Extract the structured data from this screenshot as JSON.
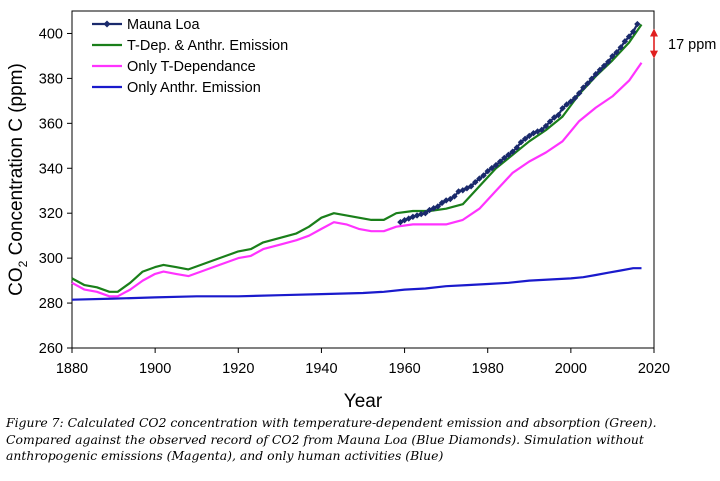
{
  "chart_data": {
    "type": "line",
    "xlabel": "Year",
    "ylabel": "CO",
    "ylabel_sub": "2",
    "ylabel_rest": " Concentration C (ppm)",
    "xlim": [
      1880,
      2020
    ],
    "ylim": [
      260,
      410
    ],
    "xticks": [
      1880,
      1900,
      1920,
      1940,
      1960,
      1980,
      2000,
      2020
    ],
    "yticks": [
      260,
      280,
      300,
      320,
      340,
      360,
      380,
      400
    ],
    "grid": false,
    "legend_position": "top-left",
    "annotation": {
      "text": "17 ppm",
      "from": 387,
      "to": 404,
      "x": 2020
    },
    "series": [
      {
        "name": "Mauna Loa",
        "color": "#1a2a6c",
        "marker": "diamond",
        "x": [
          1959,
          1960,
          1961,
          1962,
          1963,
          1964,
          1965,
          1966,
          1967,
          1968,
          1969,
          1970,
          1971,
          1972,
          1973,
          1974,
          1975,
          1976,
          1977,
          1978,
          1979,
          1980,
          1981,
          1982,
          1983,
          1984,
          1985,
          1986,
          1987,
          1988,
          1989,
          1990,
          1991,
          1992,
          1993,
          1994,
          1995,
          1996,
          1997,
          1998,
          1999,
          2000,
          2001,
          2002,
          2003,
          2004,
          2005,
          2006,
          2007,
          2008,
          2009,
          2010,
          2011,
          2012,
          2013,
          2014,
          2015,
          2016
        ],
        "values": [
          316.0,
          316.9,
          317.6,
          318.4,
          319.0,
          319.6,
          320.0,
          321.4,
          322.2,
          323.0,
          324.6,
          325.7,
          326.3,
          327.5,
          329.7,
          330.2,
          331.1,
          332.0,
          333.8,
          335.4,
          336.8,
          338.7,
          340.1,
          341.4,
          343.0,
          344.6,
          346.0,
          347.4,
          349.2,
          351.6,
          353.1,
          354.4,
          355.6,
          356.4,
          357.1,
          358.8,
          360.8,
          362.6,
          363.7,
          366.7,
          368.4,
          369.7,
          371.3,
          373.4,
          375.9,
          377.7,
          379.8,
          381.9,
          383.8,
          385.6,
          387.4,
          389.9,
          391.6,
          393.8,
          396.5,
          398.6,
          400.8,
          404.2
        ]
      },
      {
        "name": "T-Dep. & Anthr. Emission",
        "color": "#1a7f1a",
        "x": [
          1880,
          1883,
          1886,
          1889,
          1891,
          1894,
          1897,
          1900,
          1902,
          1905,
          1908,
          1911,
          1914,
          1917,
          1920,
          1923,
          1926,
          1930,
          1934,
          1937,
          1940,
          1943,
          1946,
          1949,
          1952,
          1955,
          1958,
          1962,
          1966,
          1970,
          1974,
          1978,
          1982,
          1986,
          1990,
          1994,
          1998,
          2002,
          2006,
          2010,
          2014,
          2017
        ],
        "values": [
          291,
          288,
          287,
          285,
          285,
          289,
          294,
          296,
          297,
          296,
          295,
          297,
          299,
          301,
          303,
          304,
          307,
          309,
          311,
          314,
          318,
          320,
          319,
          318,
          317,
          317,
          320,
          321,
          321,
          322,
          324,
          332,
          340,
          346,
          352,
          357,
          363,
          373,
          381,
          388,
          396,
          404
        ]
      },
      {
        "name": "Only T-Dependance",
        "color": "#ff33ff",
        "x": [
          1880,
          1883,
          1886,
          1889,
          1891,
          1894,
          1897,
          1900,
          1902,
          1905,
          1908,
          1911,
          1914,
          1917,
          1920,
          1923,
          1926,
          1930,
          1934,
          1937,
          1940,
          1943,
          1946,
          1949,
          1952,
          1955,
          1958,
          1962,
          1966,
          1970,
          1974,
          1978,
          1982,
          1986,
          1990,
          1994,
          1998,
          2002,
          2006,
          2010,
          2014,
          2017
        ],
        "values": [
          289,
          286,
          285,
          283,
          283,
          286,
          290,
          293,
          294,
          293,
          292,
          294,
          296,
          298,
          300,
          301,
          304,
          306,
          308,
          310,
          313,
          316,
          315,
          313,
          312,
          312,
          314,
          315,
          315,
          315,
          317,
          322,
          330,
          338,
          343,
          347,
          352,
          361,
          367,
          372,
          379,
          387
        ]
      },
      {
        "name": "Only Anthr. Emission",
        "color": "#1a1acc",
        "x": [
          1880,
          1890,
          1900,
          1910,
          1920,
          1930,
          1940,
          1950,
          1955,
          1960,
          1965,
          1970,
          1975,
          1980,
          1985,
          1990,
          1995,
          2000,
          2003,
          2006,
          2009,
          2012,
          2015,
          2017
        ],
        "values": [
          281.5,
          282,
          282.5,
          283,
          283,
          283.5,
          284,
          284.5,
          285,
          286,
          286.5,
          287.5,
          288,
          288.5,
          289,
          290,
          290.5,
          291,
          291.5,
          292.5,
          293.5,
          294.5,
          295.5,
          295.5
        ]
      }
    ]
  },
  "caption": "Figure 7: Calculated CO2 concentration with temperature-dependent emission and absorption (Green). Compared against the observed record of CO2 from Mauna Loa (Blue Diamonds). Simulation without anthropogenic emissions (Magenta), and only human activities (Blue)"
}
